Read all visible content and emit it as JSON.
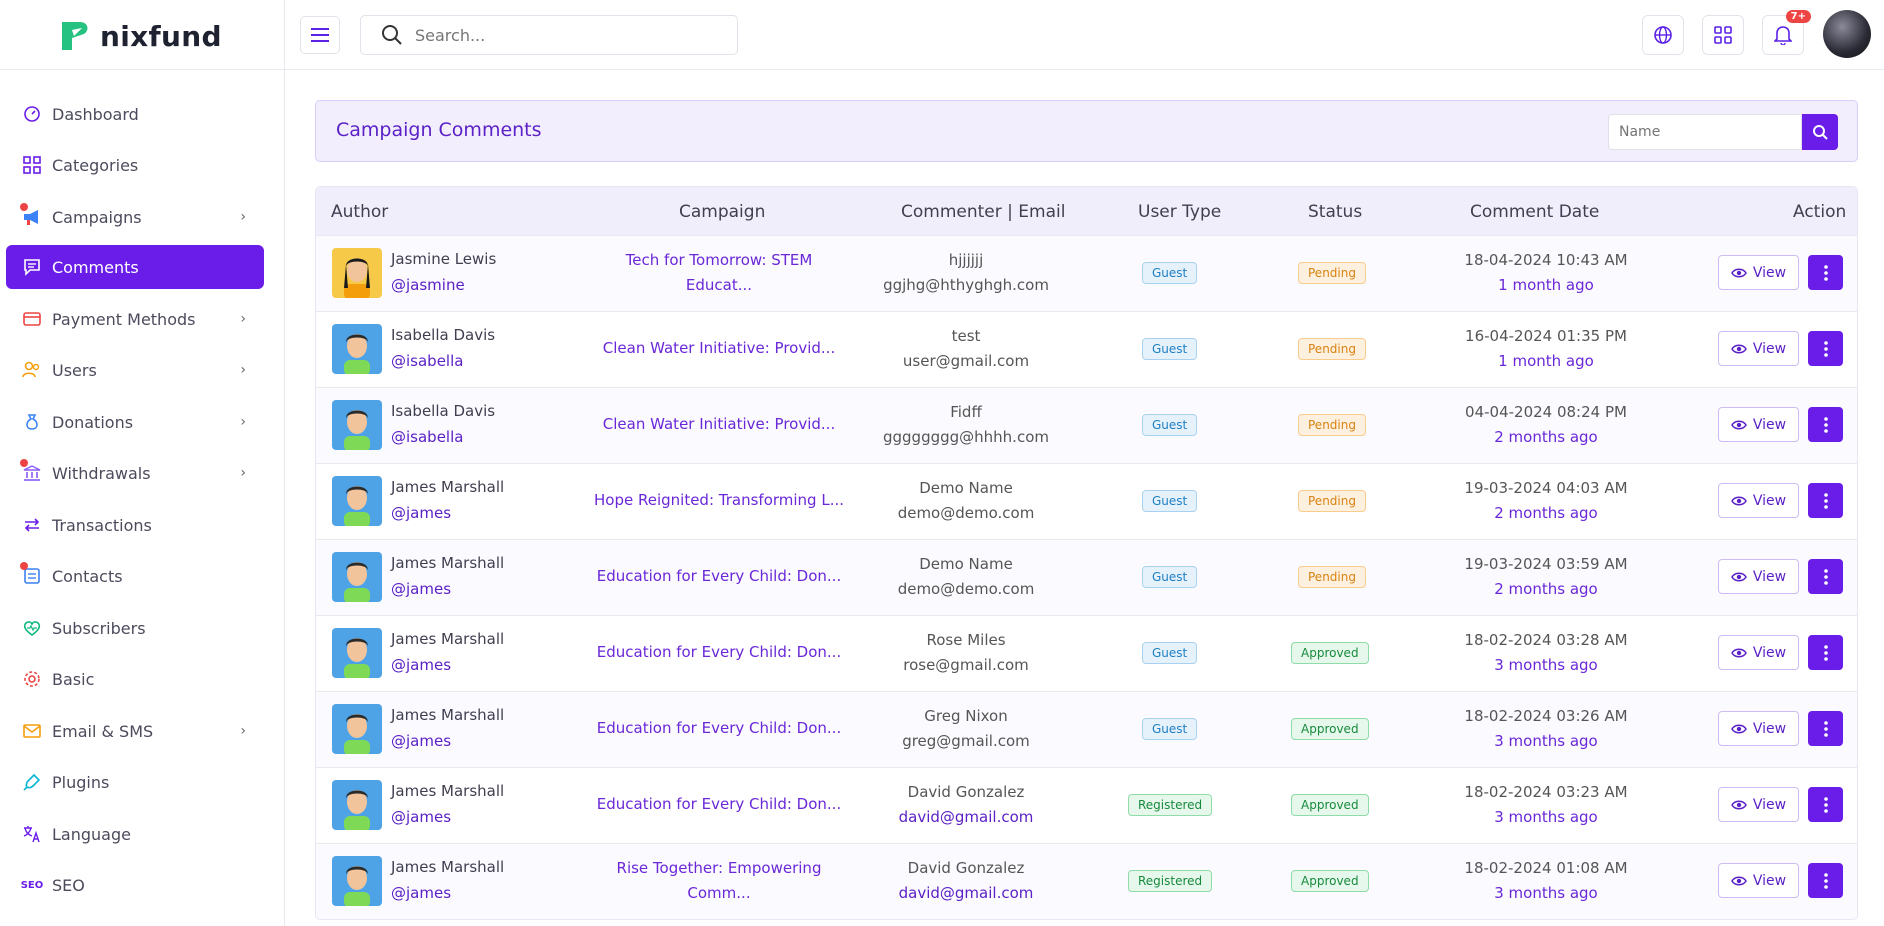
{
  "brand": {
    "name": "nixfund",
    "accent": "#6a1de8"
  },
  "search": {
    "placeholder": "Search..."
  },
  "topbar": {
    "notification_count": "7+"
  },
  "sidebar": {
    "items": [
      {
        "label": "Dashboard",
        "icon": "dashboard-icon"
      },
      {
        "label": "Categories",
        "icon": "grid-icon"
      },
      {
        "label": "Campaigns",
        "icon": "megaphone-icon"
      },
      {
        "label": "Comments",
        "icon": "comment-icon"
      },
      {
        "label": "Payment Methods",
        "icon": "card-icon"
      },
      {
        "label": "Users",
        "icon": "users-icon"
      },
      {
        "label": "Donations",
        "icon": "bag-icon"
      },
      {
        "label": "Withdrawals",
        "icon": "bank-icon"
      },
      {
        "label": "Transactions",
        "icon": "arrows-icon"
      },
      {
        "label": "Contacts",
        "icon": "contacts-icon"
      },
      {
        "label": "Subscribers",
        "icon": "heart-pulse-icon"
      },
      {
        "label": "Basic",
        "icon": "gear-icon"
      },
      {
        "label": "Email & SMS",
        "icon": "mail-icon"
      },
      {
        "label": "Plugins",
        "icon": "plug-icon"
      },
      {
        "label": "Language",
        "icon": "translate-icon"
      },
      {
        "label": "SEO",
        "icon": "seo-icon"
      }
    ]
  },
  "page": {
    "title": "Campaign Comments",
    "filter_placeholder": "Name"
  },
  "table": {
    "headers": {
      "author": "Author",
      "campaign": "Campaign",
      "commenter": "Commenter | Email",
      "user_type": "User Type",
      "status": "Status",
      "date": "Comment Date",
      "action": "Action"
    },
    "view_label": "View",
    "rows": [
      {
        "name": "Jasmine Lewis",
        "handle": "@jasmine",
        "campaign1": "Tech for Tomorrow: STEM",
        "campaign2": "Educat...",
        "commenter": "hjjjjjj",
        "email": "ggjhg@hthyghgh.com",
        "user_type": "Guest",
        "status": "Pending",
        "date": "18-04-2024 10:43 AM",
        "ago": "1 month ago"
      },
      {
        "name": "Isabella Davis",
        "handle": "@isabella",
        "campaign1": "Clean Water Initiative: Provid...",
        "campaign2": "",
        "commenter": "test",
        "email": "user@gmail.com",
        "user_type": "Guest",
        "status": "Pending",
        "date": "16-04-2024 01:35 PM",
        "ago": "1 month ago"
      },
      {
        "name": "Isabella Davis",
        "handle": "@isabella",
        "campaign1": "Clean Water Initiative: Provid...",
        "campaign2": "",
        "commenter": "Fidff",
        "email": "gggggggg@hhhh.com",
        "user_type": "Guest",
        "status": "Pending",
        "date": "04-04-2024 08:24 PM",
        "ago": "2 months ago"
      },
      {
        "name": "James Marshall",
        "handle": "@james",
        "campaign1": "Hope Reignited: Transforming L...",
        "campaign2": "",
        "commenter": "Demo Name",
        "email": "demo@demo.com",
        "user_type": "Guest",
        "status": "Pending",
        "date": "19-03-2024 04:03 AM",
        "ago": "2 months ago"
      },
      {
        "name": "James Marshall",
        "handle": "@james",
        "campaign1": "Education for Every Child: Don...",
        "campaign2": "",
        "commenter": "Demo Name",
        "email": "demo@demo.com",
        "user_type": "Guest",
        "status": "Pending",
        "date": "19-03-2024 03:59 AM",
        "ago": "2 months ago"
      },
      {
        "name": "James Marshall",
        "handle": "@james",
        "campaign1": "Education for Every Child: Don...",
        "campaign2": "",
        "commenter": "Rose Miles",
        "email": "rose@gmail.com",
        "user_type": "Guest",
        "status": "Approved",
        "date": "18-02-2024 03:28 AM",
        "ago": "3 months ago"
      },
      {
        "name": "James Marshall",
        "handle": "@james",
        "campaign1": "Education for Every Child: Don...",
        "campaign2": "",
        "commenter": "Greg Nixon",
        "email": "greg@gmail.com",
        "user_type": "Guest",
        "status": "Approved",
        "date": "18-02-2024 03:26 AM",
        "ago": "3 months ago"
      },
      {
        "name": "James Marshall",
        "handle": "@james",
        "campaign1": "Education for Every Child: Don...",
        "campaign2": "",
        "commenter": "David Gonzalez",
        "email": "david@gmail.com",
        "user_type": "Registered",
        "status": "Approved",
        "date": "18-02-2024 03:23 AM",
        "ago": "3 months ago"
      },
      {
        "name": "James Marshall",
        "handle": "@james",
        "campaign1": "Rise Together: Empowering",
        "campaign2": "Comm...",
        "commenter": "David Gonzalez",
        "email": "david@gmail.com",
        "user_type": "Registered",
        "status": "Approved",
        "date": "18-02-2024 01:08 AM",
        "ago": "3 months ago"
      }
    ]
  }
}
